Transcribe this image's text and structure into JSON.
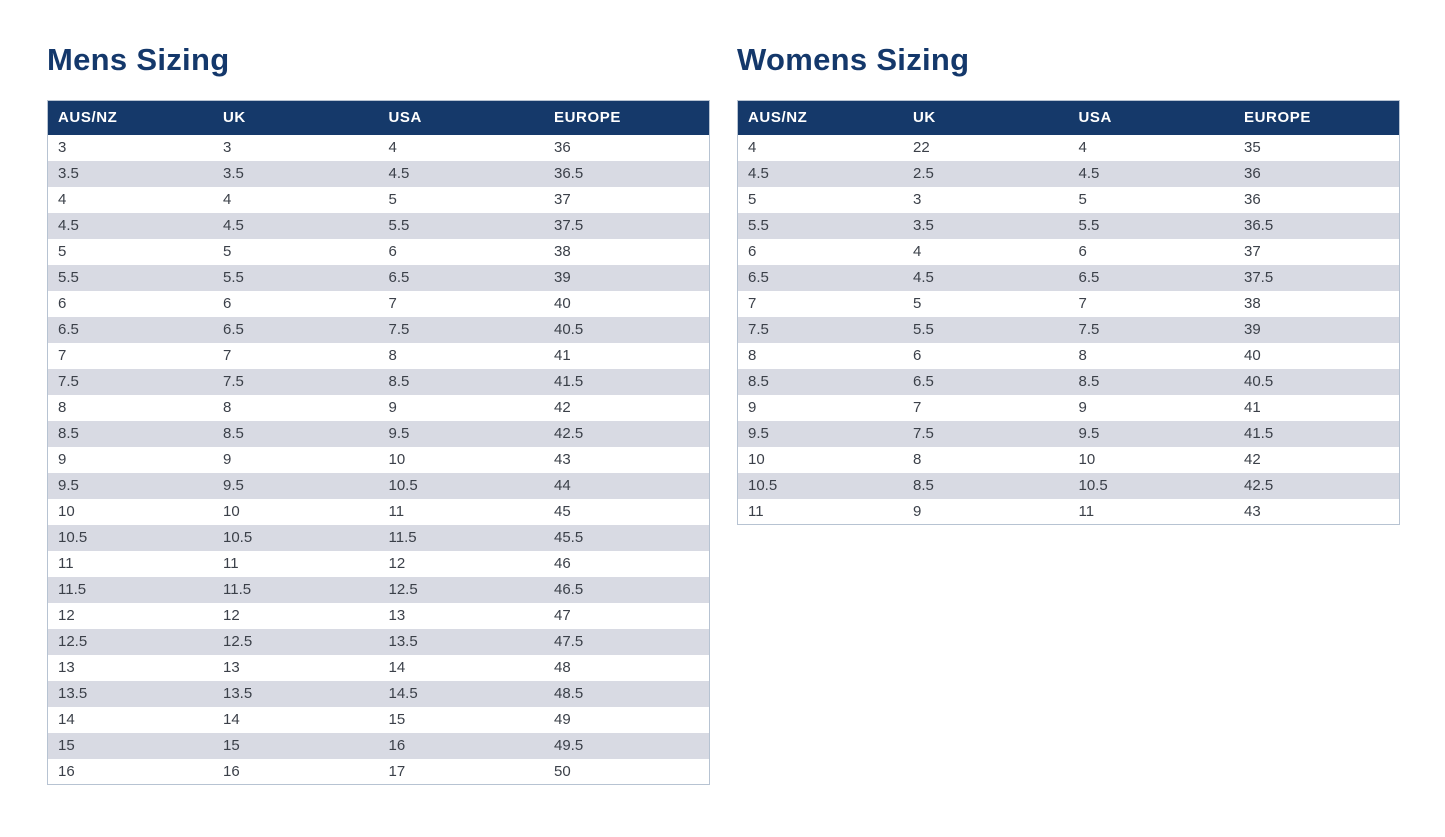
{
  "theme": {
    "header_bg": "#15396a",
    "title_color": "#14386b",
    "stripe_color": "#d8dae3",
    "cell_text_color": "#3b4049",
    "table_border_color": "#b7c3d2",
    "page_background": "#ffffff"
  },
  "mens": {
    "title": "Mens Sizing",
    "columns": [
      "AUS/NZ",
      "UK",
      "USA",
      "EUROPE"
    ],
    "rows": [
      [
        "3",
        "3",
        "4",
        "36"
      ],
      [
        "3.5",
        "3.5",
        "4.5",
        "36.5"
      ],
      [
        "4",
        "4",
        "5",
        "37"
      ],
      [
        "4.5",
        "4.5",
        "5.5",
        "37.5"
      ],
      [
        "5",
        "5",
        "6",
        "38"
      ],
      [
        "5.5",
        "5.5",
        "6.5",
        "39"
      ],
      [
        "6",
        "6",
        "7",
        "40"
      ],
      [
        "6.5",
        "6.5",
        "7.5",
        "40.5"
      ],
      [
        "7",
        "7",
        "8",
        "41"
      ],
      [
        "7.5",
        "7.5",
        "8.5",
        "41.5"
      ],
      [
        "8",
        "8",
        "9",
        "42"
      ],
      [
        "8.5",
        "8.5",
        "9.5",
        "42.5"
      ],
      [
        "9",
        "9",
        "10",
        "43"
      ],
      [
        "9.5",
        "9.5",
        "10.5",
        "44"
      ],
      [
        "10",
        "10",
        "11",
        "45"
      ],
      [
        "10.5",
        "10.5",
        "11.5",
        "45.5"
      ],
      [
        "11",
        "11",
        "12",
        "46"
      ],
      [
        "11.5",
        "11.5",
        "12.5",
        "46.5"
      ],
      [
        "12",
        "12",
        "13",
        "47"
      ],
      [
        "12.5",
        "12.5",
        "13.5",
        "47.5"
      ],
      [
        "13",
        "13",
        "14",
        "48"
      ],
      [
        "13.5",
        "13.5",
        "14.5",
        "48.5"
      ],
      [
        "14",
        "14",
        "15",
        "49"
      ],
      [
        "15",
        "15",
        "16",
        "49.5"
      ],
      [
        "16",
        "16",
        "17",
        "50"
      ]
    ]
  },
  "womens": {
    "title": "Womens Sizing",
    "columns": [
      "AUS/NZ",
      "UK",
      "USA",
      "EUROPE"
    ],
    "rows": [
      [
        "4",
        "22",
        "4",
        "35"
      ],
      [
        "4.5",
        "2.5",
        "4.5",
        "36"
      ],
      [
        "5",
        "3",
        "5",
        "36"
      ],
      [
        "5.5",
        "3.5",
        "5.5",
        "36.5"
      ],
      [
        "6",
        "4",
        "6",
        "37"
      ],
      [
        "6.5",
        "4.5",
        "6.5",
        "37.5"
      ],
      [
        "7",
        "5",
        "7",
        "38"
      ],
      [
        "7.5",
        "5.5",
        "7.5",
        "39"
      ],
      [
        "8",
        "6",
        "8",
        "40"
      ],
      [
        "8.5",
        "6.5",
        "8.5",
        "40.5"
      ],
      [
        "9",
        "7",
        "9",
        "41"
      ],
      [
        "9.5",
        "7.5",
        "9.5",
        "41.5"
      ],
      [
        "10",
        "8",
        "10",
        "42"
      ],
      [
        "10.5",
        "8.5",
        "10.5",
        "42.5"
      ],
      [
        "11",
        "9",
        "11",
        "43"
      ]
    ]
  }
}
